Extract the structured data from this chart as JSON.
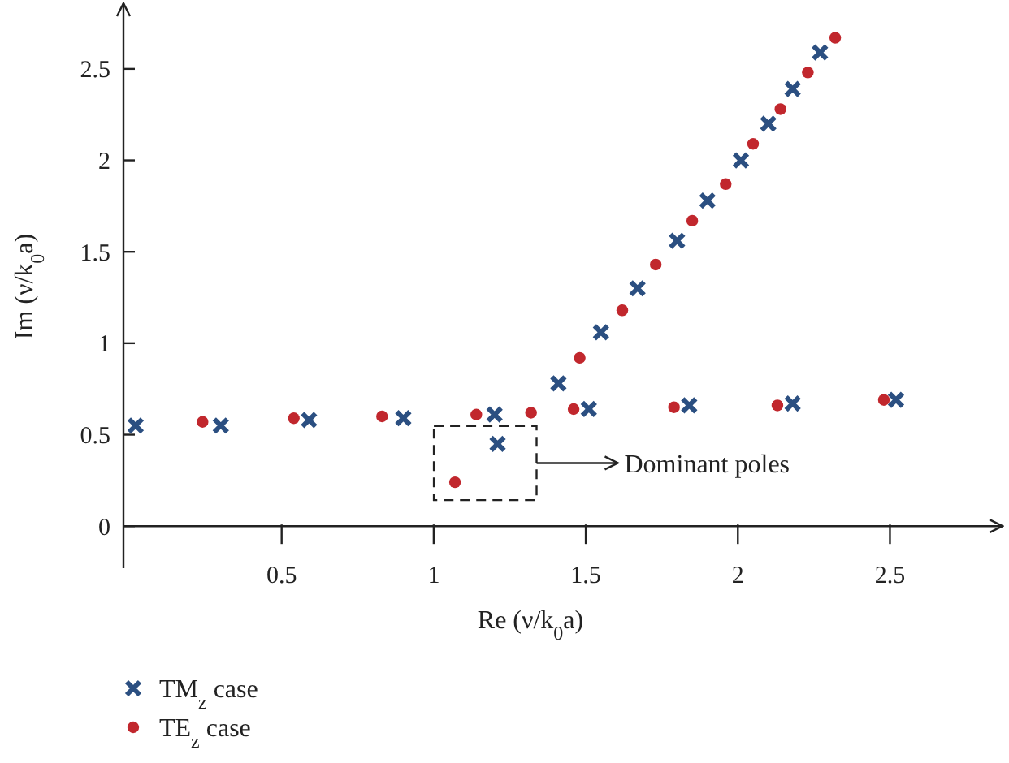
{
  "chart_data": {
    "type": "scatter",
    "xlabel": "Re (ν/k$_{0}$a)",
    "ylabel": "Im (ν/k$_{0}$a)",
    "xlim": [
      -0.02,
      2.87
    ],
    "ylim": [
      -0.23,
      2.85
    ],
    "xticks": [
      0.5,
      1,
      1.5,
      2,
      2.5
    ],
    "yticks": [
      0,
      0.5,
      1,
      1.5,
      2,
      2.5
    ],
    "grid": false,
    "legend": "bottom left",
    "annotations": [
      "Dominant poles"
    ],
    "series": [
      {
        "name": "TM$_{z}$ case",
        "color": "#2b4f81",
        "marker": "cross",
        "x": [
          0.02,
          0.3,
          0.59,
          0.9,
          1.2,
          1.21,
          1.41,
          1.51,
          1.55,
          1.67,
          1.8,
          1.9,
          2.01,
          2.1,
          2.18,
          2.27,
          1.84,
          2.18,
          2.52
        ],
        "values": [
          0.55,
          0.55,
          0.58,
          0.59,
          0.61,
          0.45,
          0.78,
          0.64,
          1.06,
          1.3,
          1.56,
          1.78,
          2.0,
          2.2,
          2.39,
          2.59,
          0.66,
          0.67,
          0.69
        ]
      },
      {
        "name": "TE$_{z}$ case",
        "color": "#c1272d",
        "marker": "circle",
        "x": [
          0.24,
          0.54,
          0.83,
          1.07,
          1.14,
          1.32,
          1.46,
          1.48,
          1.62,
          1.73,
          1.85,
          1.96,
          2.05,
          2.14,
          2.23,
          2.32,
          1.79,
          2.13,
          2.48
        ],
        "values": [
          0.57,
          0.59,
          0.6,
          0.24,
          0.61,
          0.62,
          0.64,
          0.92,
          1.18,
          1.43,
          1.67,
          1.87,
          2.09,
          2.28,
          2.48,
          2.67,
          0.65,
          0.66,
          0.69
        ]
      }
    ]
  }
}
